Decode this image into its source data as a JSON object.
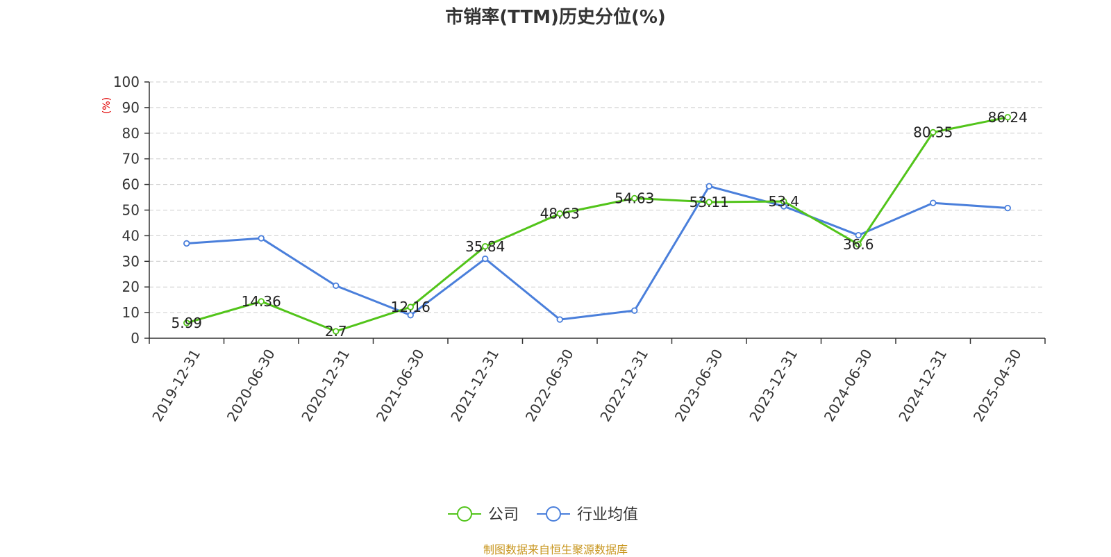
{
  "chart_data": {
    "type": "line",
    "title": "市销率(TTM)历史分位(%)",
    "ylabel": "(%)",
    "ylim": [
      0,
      100
    ],
    "yticks": [
      0,
      10,
      20,
      30,
      40,
      50,
      60,
      70,
      80,
      90,
      100
    ],
    "categories": [
      "2019-12-31",
      "2020-06-30",
      "2020-12-31",
      "2021-06-30",
      "2021-12-31",
      "2022-06-30",
      "2022-12-31",
      "2023-06-30",
      "2023-12-31",
      "2024-06-30",
      "2024-12-31",
      "2025-04-30"
    ],
    "grid": true,
    "legend_position": "bottom",
    "series": [
      {
        "name": "公司",
        "color": "#52c41a",
        "values": [
          5.99,
          14.36,
          2.7,
          12.16,
          35.84,
          48.63,
          54.63,
          53.11,
          53.4,
          36.6,
          80.35,
          86.24
        ],
        "labels": [
          "5.99",
          "14.36",
          "2.7",
          "12.16",
          "35.84",
          "48.63",
          "54.63",
          "53.11",
          "53.4",
          "36.6",
          "80.35",
          "86.24"
        ]
      },
      {
        "name": "行业均值",
        "color": "#4a7fdb",
        "values": [
          37,
          39,
          20.5,
          9,
          31,
          7.3,
          10.8,
          59.3,
          51.5,
          40.2,
          52.8,
          50.8
        ]
      }
    ],
    "source": "制图数据来自恒生聚源数据库"
  }
}
